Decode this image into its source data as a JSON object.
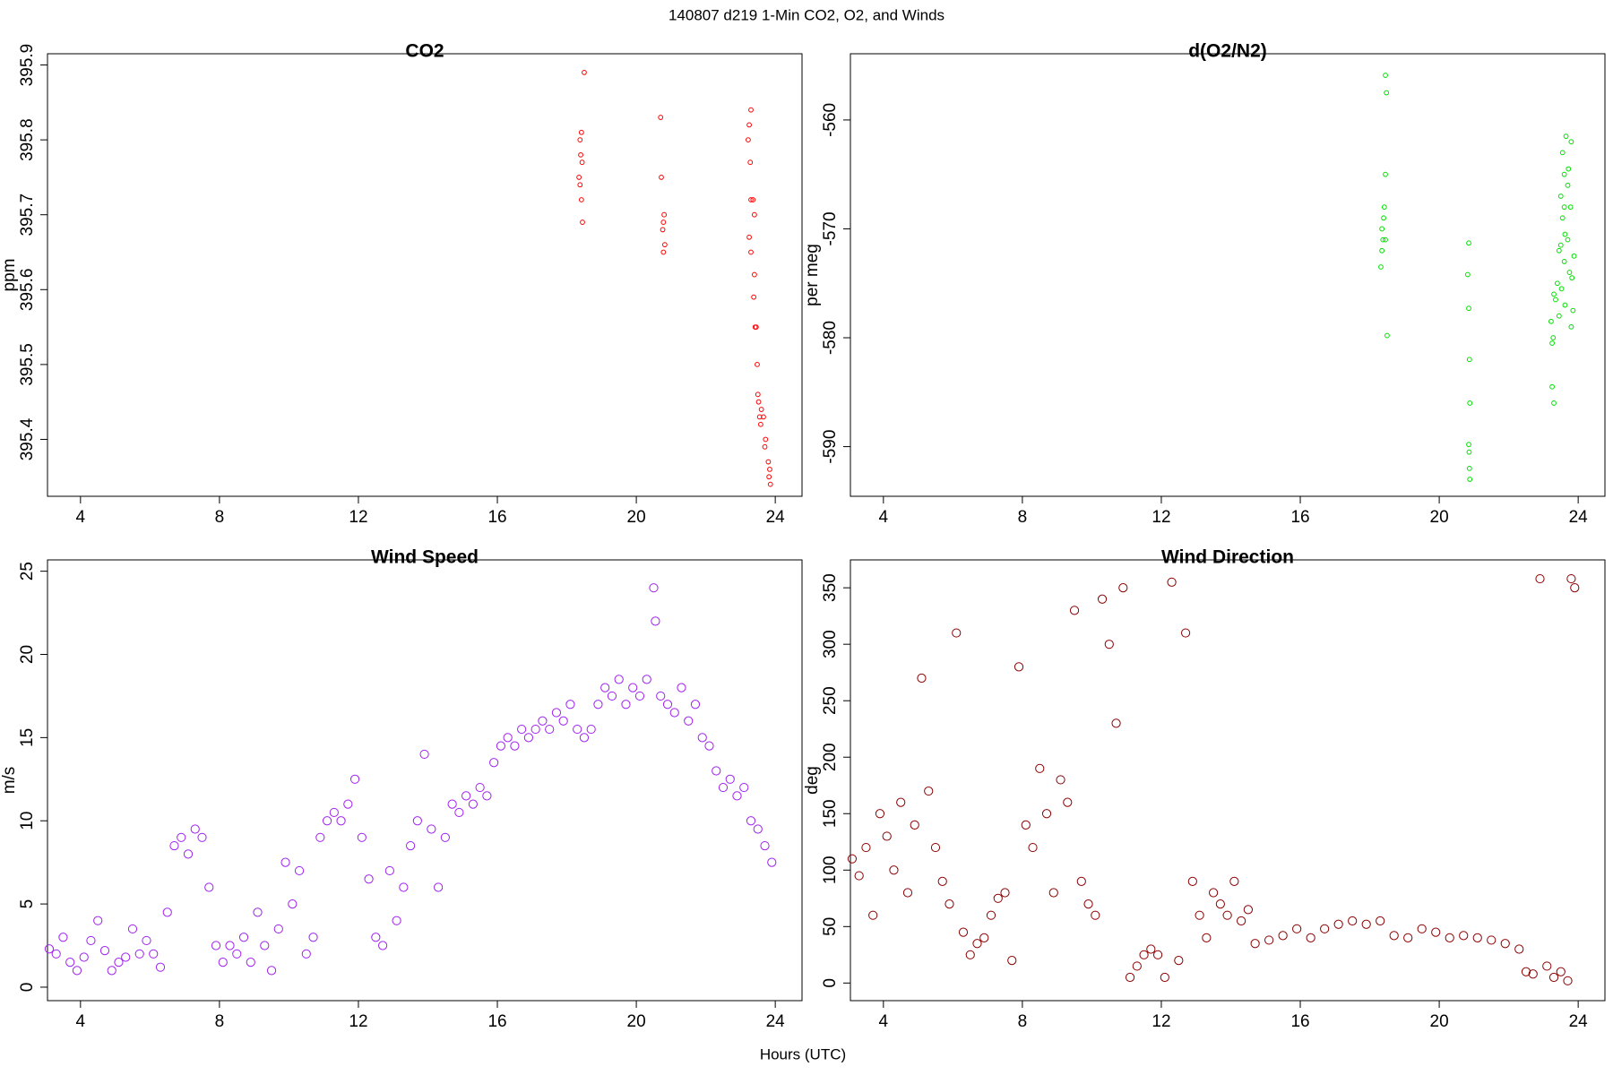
{
  "title": "140807   d219   1-Min CO2, O2, and Winds",
  "x_label": "Hours (UTC)",
  "chart_data": [
    {
      "type": "scatter",
      "title": "CO2",
      "y_label": "ppm",
      "color": "#ff0000",
      "xlim": [
        3.05,
        24.77
      ],
      "xticks": [
        4,
        8,
        12,
        16,
        20,
        24
      ],
      "ylim": [
        395.324,
        395.915
      ],
      "yticks": [
        395.4,
        395.5,
        395.6,
        395.7,
        395.8,
        395.9
      ],
      "x": [
        18.5,
        18.42,
        18.38,
        18.4,
        18.44,
        18.35,
        18.38,
        18.42,
        18.45,
        20.7,
        20.72,
        20.8,
        20.78,
        20.76,
        20.82,
        20.78,
        23.3,
        23.25,
        23.22,
        23.28,
        23.3,
        23.36,
        23.4,
        23.25,
        23.3,
        23.4,
        23.38,
        23.42,
        23.45,
        23.48,
        23.5,
        23.52,
        23.6,
        23.55,
        23.66,
        23.58,
        23.72,
        23.7,
        23.8,
        23.84,
        23.82,
        23.86
      ],
      "y": [
        395.89,
        395.81,
        395.8,
        395.78,
        395.77,
        395.75,
        395.74,
        395.72,
        395.69,
        395.83,
        395.75,
        395.7,
        395.69,
        395.68,
        395.66,
        395.65,
        395.84,
        395.82,
        395.8,
        395.77,
        395.72,
        395.72,
        395.7,
        395.67,
        395.65,
        395.62,
        395.59,
        395.55,
        395.55,
        395.5,
        395.46,
        395.45,
        395.44,
        395.43,
        395.43,
        395.42,
        395.4,
        395.39,
        395.37,
        395.36,
        395.35,
        395.34
      ]
    },
    {
      "type": "scatter",
      "title": "d(O2/N2)",
      "y_label": "per meg",
      "color": "#00e000",
      "xlim": [
        3.05,
        24.77
      ],
      "xticks": [
        4,
        8,
        12,
        16,
        20,
        24
      ],
      "ylim": [
        -594.56,
        -553.92
      ],
      "yticks": [
        -590,
        -580,
        -570,
        -560
      ],
      "x": [
        18.45,
        18.48,
        18.45,
        18.42,
        18.4,
        18.35,
        18.38,
        18.45,
        18.35,
        18.32,
        18.5,
        20.85,
        20.82,
        20.85,
        20.87,
        20.88,
        20.85,
        20.86,
        20.87,
        20.88,
        23.65,
        23.8,
        23.55,
        23.72,
        23.6,
        23.7,
        23.5,
        23.78,
        23.6,
        23.55,
        23.62,
        23.7,
        23.5,
        23.45,
        23.88,
        23.6,
        23.75,
        23.82,
        23.4,
        23.52,
        23.3,
        23.35,
        23.62,
        23.85,
        23.45,
        23.22,
        23.8,
        23.28,
        23.25,
        23.25,
        23.3
      ],
      "y": [
        -555.9,
        -557.5,
        -565,
        -568,
        -569,
        -570,
        -571,
        -571,
        -572,
        -573.5,
        -579.8,
        -571.3,
        -574.2,
        -577.3,
        -582,
        -586,
        -589.8,
        -590.5,
        -592,
        -593,
        -561.5,
        -562,
        -563,
        -564.5,
        -565,
        -566,
        -567,
        -568,
        -568,
        -569,
        -570.5,
        -571,
        -571.5,
        -572,
        -572.5,
        -573,
        -574,
        -574.5,
        -575,
        -575.5,
        -576,
        -576.5,
        -577,
        -577.5,
        -578,
        -578.5,
        -579,
        -580,
        -580.5,
        -584.5,
        -586
      ]
    },
    {
      "type": "scatter",
      "title": "Wind Speed",
      "y_label": "m/s",
      "color": "#a020f0",
      "xlim": [
        3.05,
        24.77
      ],
      "xticks": [
        4,
        8,
        12,
        16,
        20,
        24
      ],
      "ylim": [
        -0.81,
        25.68
      ],
      "yticks": [
        0,
        5,
        10,
        15,
        20,
        25
      ],
      "x": [
        3.1,
        3.3,
        3.5,
        3.7,
        3.9,
        4.1,
        4.3,
        4.5,
        4.7,
        4.9,
        5.1,
        5.3,
        5.5,
        5.7,
        5.9,
        6.1,
        6.3,
        6.5,
        6.7,
        6.9,
        7.1,
        7.3,
        7.5,
        7.7,
        7.9,
        8.1,
        8.3,
        8.5,
        8.7,
        8.9,
        9.1,
        9.3,
        9.5,
        9.7,
        9.9,
        10.1,
        10.3,
        10.5,
        10.7,
        10.9,
        11.1,
        11.3,
        11.5,
        11.7,
        11.9,
        12.1,
        12.3,
        12.5,
        12.7,
        12.9,
        13.1,
        13.3,
        13.5,
        13.7,
        13.9,
        14.1,
        14.3,
        14.5,
        14.7,
        14.9,
        15.1,
        15.3,
        15.5,
        15.7,
        15.9,
        16.1,
        16.3,
        16.5,
        16.7,
        16.9,
        17.1,
        17.3,
        17.5,
        17.7,
        17.9,
        18.1,
        18.3,
        18.5,
        18.7,
        18.9,
        19.1,
        19.3,
        19.5,
        19.7,
        19.9,
        20.1,
        20.3,
        20.5,
        20.55,
        20.7,
        20.9,
        21.1,
        21.3,
        21.5,
        21.7,
        21.9,
        22.1,
        22.3,
        22.5,
        22.7,
        22.9,
        23.1,
        23.3,
        23.5,
        23.7,
        23.9
      ],
      "y": [
        2.3,
        2.0,
        3.0,
        1.5,
        1.0,
        1.8,
        2.8,
        4.0,
        2.2,
        1.0,
        1.5,
        1.8,
        3.5,
        2.0,
        2.8,
        2.0,
        1.2,
        4.5,
        8.5,
        9.0,
        8.0,
        9.5,
        9.0,
        6.0,
        2.5,
        1.5,
        2.5,
        2.0,
        3.0,
        1.5,
        4.5,
        2.5,
        1.0,
        3.5,
        7.5,
        5.0,
        7.0,
        2.0,
        3.0,
        9.0,
        10.0,
        10.5,
        10.0,
        11.0,
        12.5,
        9.0,
        6.5,
        3.0,
        2.5,
        7.0,
        4.0,
        6.0,
        8.5,
        10.0,
        14.0,
        9.5,
        6.0,
        9.0,
        11.0,
        10.5,
        11.5,
        11.0,
        12.0,
        11.5,
        13.5,
        14.5,
        15.0,
        14.5,
        15.5,
        15.0,
        15.5,
        16.0,
        15.5,
        16.5,
        16.0,
        17.0,
        15.5,
        15.0,
        15.5,
        17.0,
        18.0,
        17.5,
        18.5,
        17.0,
        18.0,
        17.5,
        18.5,
        24.0,
        22.0,
        17.5,
        17.0,
        16.5,
        18.0,
        16.0,
        17.0,
        15.0,
        14.5,
        13.0,
        12.0,
        12.5,
        11.5,
        12.0,
        10.0,
        9.5,
        8.5,
        7.5
      ]
    },
    {
      "type": "scatter",
      "title": "Wind Direction",
      "y_label": "deg",
      "color": "#8b0000",
      "xlim": [
        3.05,
        24.77
      ],
      "xticks": [
        4,
        8,
        12,
        16,
        20,
        24
      ],
      "ylim": [
        -15.6,
        374.7
      ],
      "yticks": [
        0,
        50,
        100,
        150,
        200,
        250,
        300,
        350
      ],
      "x": [
        3.1,
        3.3,
        3.5,
        3.7,
        3.9,
        4.1,
        4.3,
        4.5,
        4.7,
        4.9,
        5.1,
        5.3,
        5.5,
        5.7,
        5.9,
        6.1,
        6.3,
        6.5,
        6.7,
        6.9,
        7.1,
        7.3,
        7.5,
        7.7,
        7.9,
        8.1,
        8.3,
        8.5,
        8.7,
        8.9,
        9.1,
        9.3,
        9.5,
        9.7,
        9.9,
        10.1,
        10.3,
        10.5,
        10.7,
        10.9,
        11.1,
        11.3,
        11.5,
        11.7,
        11.9,
        12.1,
        12.3,
        12.5,
        12.7,
        12.9,
        13.1,
        13.3,
        13.5,
        13.7,
        13.9,
        14.1,
        14.3,
        14.5,
        14.7,
        15.1,
        15.5,
        15.9,
        16.3,
        16.7,
        17.1,
        17.5,
        17.9,
        18.3,
        18.7,
        19.1,
        19.5,
        19.9,
        20.3,
        20.7,
        21.1,
        21.5,
        21.9,
        22.3,
        22.5,
        22.7,
        22.9,
        23.1,
        23.3,
        23.5,
        23.7,
        23.8,
        23.9
      ],
      "y": [
        110,
        95,
        120,
        60,
        150,
        130,
        100,
        160,
        80,
        140,
        270,
        170,
        120,
        90,
        70,
        310,
        45,
        25,
        35,
        40,
        60,
        75,
        80,
        20,
        280,
        140,
        120,
        190,
        150,
        80,
        180,
        160,
        330,
        90,
        70,
        60,
        340,
        300,
        230,
        350,
        5,
        15,
        25,
        30,
        25,
        5,
        355,
        20,
        310,
        90,
        60,
        40,
        80,
        70,
        60,
        90,
        55,
        65,
        35,
        38,
        42,
        48,
        40,
        48,
        52,
        55,
        52,
        55,
        42,
        40,
        48,
        45,
        40,
        42,
        40,
        38,
        35,
        30,
        10,
        8,
        358,
        15,
        5,
        10,
        2,
        358,
        350
      ]
    }
  ]
}
